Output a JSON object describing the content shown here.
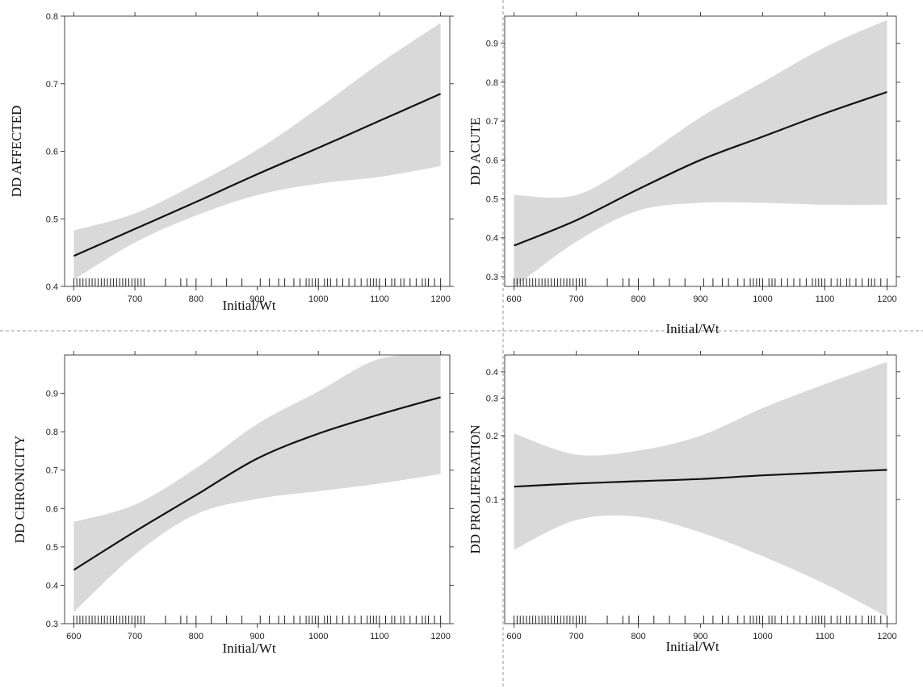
{
  "chart_data": [
    {
      "type": "line",
      "title": "",
      "xlabel": "Initial/Wt",
      "ylabel": "DD AFFECTED",
      "xlim": [
        585,
        1215
      ],
      "ylim": [
        0.4,
        0.8
      ],
      "yscale": "linear",
      "x_ticks": [
        600,
        700,
        800,
        900,
        1000,
        1100,
        1200
      ],
      "y_ticks": [
        0.4,
        0.5,
        0.6,
        0.7,
        0.8
      ],
      "y_tick_labels": [
        "0.4",
        "0.5",
        "0.6",
        "0.7",
        "0.8"
      ],
      "grid": false,
      "series": [
        {
          "x": [
            600,
            700,
            800,
            900,
            1000,
            1100,
            1200
          ],
          "values": [
            0.445,
            0.485,
            0.525,
            0.566,
            0.605,
            0.645,
            0.685
          ],
          "lower": [
            0.41,
            0.465,
            0.505,
            0.535,
            0.552,
            0.562,
            0.578
          ],
          "upper": [
            0.483,
            0.508,
            0.552,
            0.602,
            0.664,
            0.73,
            0.79
          ]
        }
      ],
      "rug": [
        600,
        605,
        610,
        615,
        620,
        625,
        630,
        635,
        640,
        645,
        650,
        655,
        660,
        665,
        670,
        675,
        680,
        685,
        690,
        695,
        700,
        705,
        710,
        715,
        750,
        775,
        785,
        800,
        825,
        850,
        875,
        905,
        920,
        935,
        945,
        960,
        970,
        980,
        985,
        990,
        995,
        1000,
        1010,
        1015,
        1020,
        1030,
        1040,
        1050,
        1060,
        1070,
        1080,
        1085,
        1090,
        1095,
        1100,
        1110,
        1120,
        1125,
        1135,
        1140,
        1150,
        1160,
        1170,
        1175,
        1180,
        1190,
        1200
      ]
    },
    {
      "type": "line",
      "title": "",
      "xlabel": "Initial/Wt",
      "ylabel": "DD ACUTE",
      "xlim": [
        585,
        1215
      ],
      "ylim": [
        0.275,
        0.97
      ],
      "yscale": "linear",
      "x_ticks": [
        600,
        700,
        800,
        900,
        1000,
        1100,
        1200
      ],
      "y_ticks": [
        0.3,
        0.4,
        0.5,
        0.6,
        0.7,
        0.8,
        0.9
      ],
      "y_tick_labels": [
        "0.3",
        "0.4",
        "0.5",
        "0.6",
        "0.7",
        "0.8",
        "0.9"
      ],
      "grid": false,
      "series": [
        {
          "x": [
            600,
            700,
            800,
            900,
            1000,
            1100,
            1200
          ],
          "values": [
            0.38,
            0.445,
            0.525,
            0.6,
            0.66,
            0.72,
            0.775
          ],
          "lower": [
            0.272,
            0.39,
            0.47,
            0.49,
            0.49,
            0.485,
            0.485
          ],
          "upper": [
            0.51,
            0.51,
            0.6,
            0.71,
            0.8,
            0.89,
            0.96
          ]
        }
      ],
      "rug": [
        600,
        605,
        610,
        615,
        620,
        625,
        630,
        635,
        640,
        645,
        650,
        655,
        660,
        665,
        670,
        675,
        680,
        685,
        690,
        695,
        700,
        705,
        710,
        715,
        750,
        775,
        785,
        800,
        825,
        850,
        875,
        905,
        920,
        935,
        945,
        960,
        970,
        980,
        985,
        990,
        995,
        1000,
        1010,
        1015,
        1020,
        1030,
        1040,
        1050,
        1060,
        1070,
        1080,
        1085,
        1090,
        1095,
        1100,
        1110,
        1120,
        1125,
        1135,
        1140,
        1150,
        1160,
        1170,
        1175,
        1180,
        1190,
        1200
      ]
    },
    {
      "type": "line",
      "title": "",
      "xlabel": "Initial/Wt",
      "ylabel": "DD CHRONICITY",
      "xlim": [
        585,
        1215
      ],
      "ylim": [
        0.3,
        1.0
      ],
      "yscale": "linear",
      "x_ticks": [
        600,
        700,
        800,
        900,
        1000,
        1100,
        1200
      ],
      "y_ticks": [
        0.3,
        0.4,
        0.5,
        0.6,
        0.7,
        0.8,
        0.9
      ],
      "y_tick_labels": [
        "0.3",
        "0.4",
        "0.5",
        "0.6",
        "0.7",
        "0.8",
        "0.9"
      ],
      "grid": false,
      "series": [
        {
          "x": [
            600,
            700,
            800,
            900,
            1000,
            1100,
            1200
          ],
          "values": [
            0.44,
            0.54,
            0.635,
            0.73,
            0.795,
            0.845,
            0.89
          ],
          "lower": [
            0.33,
            0.48,
            0.585,
            0.625,
            0.645,
            0.665,
            0.69
          ],
          "upper": [
            0.565,
            0.61,
            0.705,
            0.82,
            0.905,
            0.99,
            1.0
          ]
        }
      ],
      "rug": [
        600,
        605,
        610,
        615,
        620,
        625,
        630,
        635,
        640,
        645,
        650,
        655,
        660,
        665,
        670,
        675,
        680,
        685,
        690,
        695,
        700,
        705,
        710,
        715,
        750,
        775,
        785,
        800,
        825,
        850,
        875,
        905,
        920,
        935,
        945,
        960,
        970,
        980,
        985,
        990,
        995,
        1000,
        1010,
        1015,
        1020,
        1030,
        1040,
        1050,
        1060,
        1070,
        1080,
        1085,
        1090,
        1095,
        1100,
        1110,
        1120,
        1125,
        1135,
        1140,
        1150,
        1160,
        1170,
        1175,
        1180,
        1190,
        1200
      ]
    },
    {
      "type": "line",
      "title": "",
      "xlabel": "Initial/Wt",
      "ylabel": "DD PROLIFERATION",
      "xlim": [
        585,
        1215
      ],
      "ylim": [
        0.026,
        0.48
      ],
      "yscale": "log",
      "x_ticks": [
        600,
        700,
        800,
        900,
        1000,
        1100,
        1200
      ],
      "y_ticks": [
        0.1,
        0.2,
        0.3,
        0.4
      ],
      "y_tick_labels": [
        "0.1",
        "0.2",
        "0.3",
        "0.4"
      ],
      "grid": false,
      "series": [
        {
          "x": [
            600,
            700,
            800,
            900,
            1000,
            1100,
            1200
          ],
          "values": [
            0.115,
            0.119,
            0.122,
            0.125,
            0.13,
            0.134,
            0.138
          ],
          "lower": [
            0.058,
            0.08,
            0.083,
            0.07,
            0.054,
            0.04,
            0.028
          ],
          "upper": [
            0.205,
            0.163,
            0.17,
            0.2,
            0.27,
            0.35,
            0.445
          ]
        }
      ],
      "rug": [
        600,
        605,
        610,
        615,
        620,
        625,
        630,
        635,
        640,
        645,
        650,
        655,
        660,
        665,
        670,
        675,
        680,
        685,
        690,
        695,
        700,
        705,
        710,
        715,
        750,
        775,
        785,
        800,
        825,
        850,
        875,
        905,
        920,
        935,
        945,
        960,
        970,
        980,
        985,
        990,
        995,
        1000,
        1010,
        1015,
        1020,
        1030,
        1040,
        1050,
        1060,
        1070,
        1080,
        1085,
        1090,
        1095,
        1100,
        1110,
        1120,
        1125,
        1135,
        1140,
        1150,
        1160,
        1170,
        1175,
        1180,
        1190,
        1200
      ]
    }
  ]
}
